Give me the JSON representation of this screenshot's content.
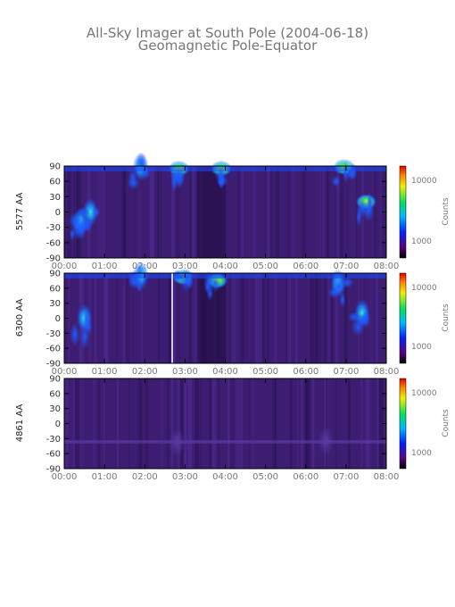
{
  "figure": {
    "title": "All-Sky Imager at South Pole (2004-06-18)",
    "subtitle": "Geomagnetic Pole-Equator"
  },
  "chart_data": [
    {
      "type": "heatmap",
      "ylabel": "5577 AA",
      "y_ticks": [
        "90",
        "60",
        "30",
        "0",
        "-30",
        "-60",
        "-90"
      ],
      "ylim": [
        -90,
        90
      ],
      "x_ticks": [
        "00:00",
        "01:00",
        "02:00",
        "03:00",
        "04:00",
        "05:00",
        "06:00",
        "07:00",
        "08:00"
      ],
      "xlim": [
        "00:00",
        "08:00"
      ],
      "colorbar": {
        "label": "Counts",
        "ticks": [
          "10000",
          "1000"
        ],
        "scale": "log"
      },
      "features": [
        {
          "t": 0.4,
          "lat": -20,
          "intensity": "medium"
        },
        {
          "t": 0.65,
          "lat": 0,
          "intensity": "medium"
        },
        {
          "t": 1.9,
          "lat": 88,
          "intensity": "medium"
        },
        {
          "t": 2.85,
          "lat": 85,
          "intensity": "high"
        },
        {
          "t": 3.9,
          "lat": 85,
          "intensity": "high"
        },
        {
          "t": 6.95,
          "lat": 88,
          "intensity": "high"
        },
        {
          "t": 7.5,
          "lat": 20,
          "intensity": "high"
        }
      ]
    },
    {
      "type": "heatmap",
      "ylabel": "6300 AA",
      "y_ticks": [
        "90",
        "60",
        "30",
        "0",
        "-30",
        "-60",
        "-90"
      ],
      "ylim": [
        -90,
        90
      ],
      "x_ticks": [
        "00:00",
        "01:00",
        "02:00",
        "03:00",
        "04:00",
        "05:00",
        "06:00",
        "07:00",
        "08:00"
      ],
      "xlim": [
        "00:00",
        "08:00"
      ],
      "colorbar": {
        "label": "Counts",
        "ticks": [
          "10000",
          "1000"
        ],
        "scale": "log"
      },
      "gap_time": "02:45",
      "features": [
        {
          "t": 0.5,
          "lat": 0,
          "intensity": "medium"
        },
        {
          "t": 1.9,
          "lat": 85,
          "intensity": "medium"
        },
        {
          "t": 2.95,
          "lat": 82,
          "intensity": "high"
        },
        {
          "t": 3.8,
          "lat": 75,
          "intensity": "high"
        },
        {
          "t": 6.8,
          "lat": 70,
          "intensity": "medium"
        },
        {
          "t": 7.4,
          "lat": 10,
          "intensity": "medium"
        }
      ]
    },
    {
      "type": "heatmap",
      "ylabel": "4861 AA",
      "y_ticks": [
        "90",
        "60",
        "30",
        "0",
        "-30",
        "-60",
        "-90"
      ],
      "ylim": [
        -90,
        90
      ],
      "x_ticks": [
        "00:00",
        "01:00",
        "02:00",
        "03:00",
        "04:00",
        "05:00",
        "06:00",
        "07:00",
        "08:00"
      ],
      "xlim": [
        "00:00",
        "08:00"
      ],
      "colorbar": {
        "label": "Counts",
        "ticks": [
          "10000",
          "1000"
        ],
        "scale": "log"
      },
      "features": [
        {
          "t": 2.8,
          "lat": -38,
          "intensity": "low"
        },
        {
          "t": 6.5,
          "lat": -35,
          "intensity": "low"
        }
      ]
    }
  ],
  "colors": {
    "background_field": "#3a1a6e",
    "dark_field": "#22104a",
    "blue": "#1a4aff",
    "cyan": "#22e0e0",
    "green": "#3aee3a",
    "yellow": "#f0e020",
    "red": "#e02010"
  }
}
